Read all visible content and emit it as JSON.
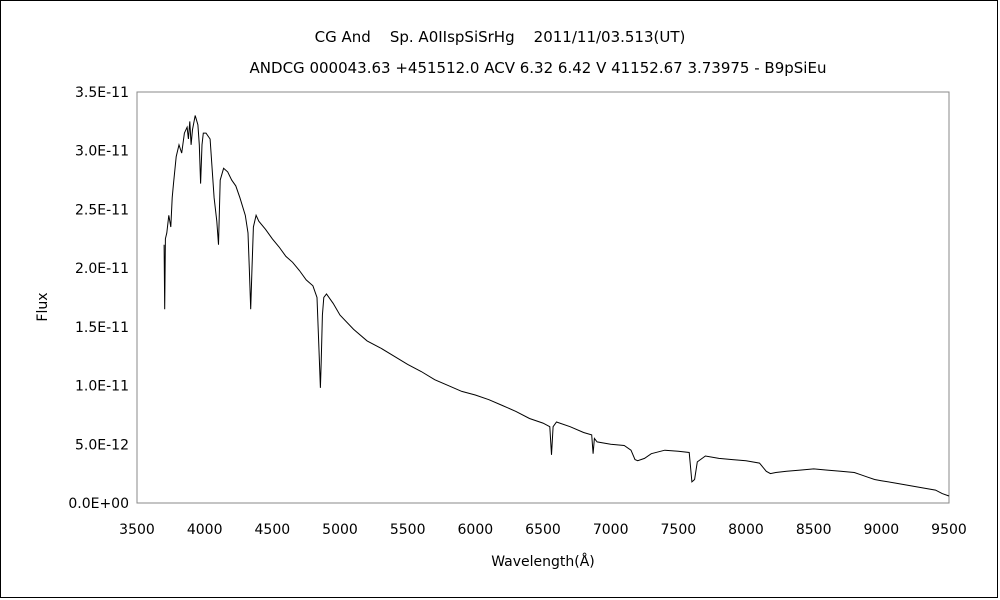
{
  "chart_data": {
    "type": "line",
    "title": "CG And    Sp. A0IIspSiSrHg    2011/11/03.513(UT)",
    "subtitle": "ANDCG 000043.63 +451512.0 ACV 6.32 6.42 V 41152.67 3.73975 - B9pSiEu",
    "xlabel": "Wavelength(Å)",
    "ylabel": "Flux",
    "xlim": [
      3500,
      9500
    ],
    "ylim": [
      0,
      3.5e-11
    ],
    "x_ticks": [
      "3500",
      "4000",
      "4500",
      "5000",
      "5500",
      "6000",
      "6500",
      "7000",
      "7500",
      "8000",
      "8500",
      "9000",
      "9500"
    ],
    "y_ticks": [
      "0.0E+00",
      "5.0E-12",
      "1.0E-11",
      "1.5E-11",
      "2.0E-11",
      "2.5E-11",
      "3.0E-11",
      "3.5E-11"
    ],
    "grid": false,
    "series": [
      {
        "x": [
          3700,
          3705,
          3710,
          3720,
          3735,
          3750,
          3760,
          3770,
          3790,
          3810,
          3830,
          3850,
          3870,
          3880,
          3890,
          3900,
          3910,
          3930,
          3950,
          3960,
          3970,
          3980,
          3990,
          4010,
          4040,
          4070,
          4090,
          4102,
          4115,
          4140,
          4170,
          4200,
          4230,
          4260,
          4300,
          4320,
          4330,
          4340,
          4350,
          4360,
          4380,
          4400,
          4450,
          4500,
          4550,
          4600,
          4650,
          4700,
          4750,
          4800,
          4830,
          4845,
          4855,
          4861,
          4870,
          4880,
          4900,
          4950,
          5000,
          5100,
          5200,
          5300,
          5400,
          5500,
          5600,
          5700,
          5800,
          5900,
          6000,
          6100,
          6200,
          6300,
          6400,
          6500,
          6550,
          6563,
          6575,
          6600,
          6700,
          6800,
          6860,
          6870,
          6880,
          6900,
          7000,
          7100,
          7150,
          7180,
          7200,
          7250,
          7300,
          7400,
          7500,
          7580,
          7600,
          7620,
          7640,
          7700,
          7800,
          7900,
          8000,
          8100,
          8150,
          8180,
          8220,
          8300,
          8400,
          8500,
          8600,
          8700,
          8800,
          8850,
          8900,
          8950,
          9000,
          9100,
          9200,
          9300,
          9400,
          9450,
          9500
        ],
        "y": [
          2.2e-11,
          1.65e-11,
          2.25e-11,
          2.3e-11,
          2.45e-11,
          2.35e-11,
          2.6e-11,
          2.72e-11,
          2.95e-11,
          3.05e-11,
          2.98e-11,
          3.15e-11,
          3.2e-11,
          3.1e-11,
          3.25e-11,
          3.05e-11,
          3.18e-11,
          3.3e-11,
          3.22e-11,
          3.05e-11,
          2.72e-11,
          3.05e-11,
          3.15e-11,
          3.15e-11,
          3.1e-11,
          2.6e-11,
          2.4e-11,
          2.2e-11,
          2.75e-11,
          2.85e-11,
          2.82e-11,
          2.75e-11,
          2.7e-11,
          2.6e-11,
          2.45e-11,
          2.3e-11,
          2e-11,
          1.65e-11,
          2e-11,
          2.35e-11,
          2.45e-11,
          2.4e-11,
          2.33e-11,
          2.25e-11,
          2.18e-11,
          2.1e-11,
          2.05e-11,
          1.98e-11,
          1.9e-11,
          1.85e-11,
          1.75e-11,
          1.3e-11,
          9.8e-12,
          1.2e-11,
          1.6e-11,
          1.75e-11,
          1.78e-11,
          1.7e-11,
          1.6e-11,
          1.48e-11,
          1.38e-11,
          1.32e-11,
          1.25e-11,
          1.18e-11,
          1.12e-11,
          1.05e-11,
          1e-11,
          9.5e-12,
          9.2e-12,
          8.8e-12,
          8.3e-12,
          7.8e-12,
          7.2e-12,
          6.8e-12,
          6.5e-12,
          4.1e-12,
          6.5e-12,
          6.9e-12,
          6.5e-12,
          6e-12,
          5.8e-12,
          4.2e-12,
          5.5e-12,
          5.2e-12,
          5e-12,
          4.9e-12,
          4.5e-12,
          3.7e-12,
          3.6e-12,
          3.8e-12,
          4.2e-12,
          4.5e-12,
          4.4e-12,
          4.3e-12,
          1.8e-12,
          2e-12,
          3.5e-12,
          4e-12,
          3.8e-12,
          3.7e-12,
          3.6e-12,
          3.4e-12,
          2.7e-12,
          2.5e-12,
          2.6e-12,
          2.7e-12,
          2.8e-12,
          2.9e-12,
          2.8e-12,
          2.7e-12,
          2.6e-12,
          2.4e-12,
          2.2e-12,
          2e-12,
          1.9e-12,
          1.7e-12,
          1.5e-12,
          1.3e-12,
          1.1e-12,
          8e-13,
          6e-13
        ]
      }
    ]
  }
}
